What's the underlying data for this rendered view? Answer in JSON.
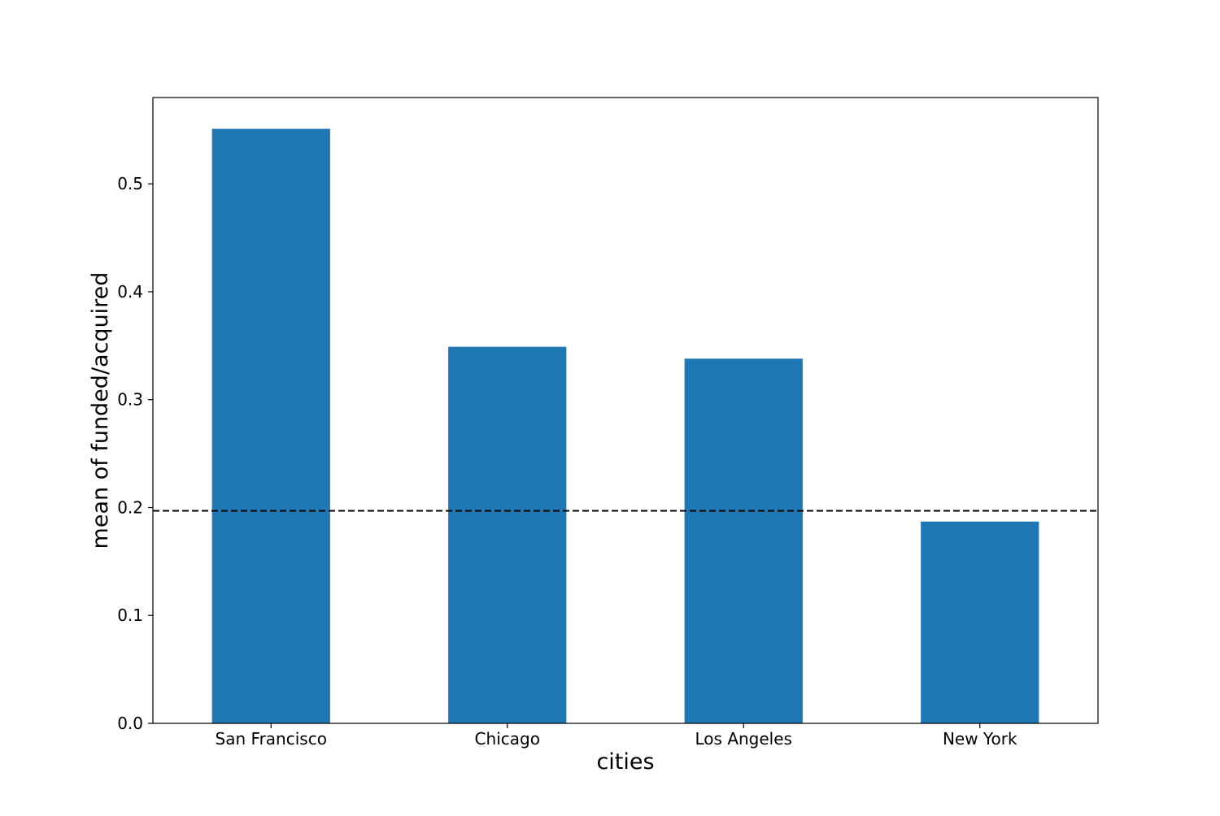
{
  "chart_data": {
    "type": "bar",
    "title": "",
    "xlabel": "cities",
    "ylabel": "mean of funded/acquired",
    "categories": [
      "San Francisco",
      "Chicago",
      "Los Angeles",
      "New York"
    ],
    "values": [
      0.551,
      0.349,
      0.338,
      0.187
    ],
    "ylim": [
      0,
      0.58
    ],
    "yticks": [
      {
        "value": 0.0,
        "label": "0.0"
      },
      {
        "value": 0.1,
        "label": "0.1"
      },
      {
        "value": 0.2,
        "label": "0.2"
      },
      {
        "value": 0.3,
        "label": "0.3"
      },
      {
        "value": 0.4,
        "label": "0.4"
      },
      {
        "value": 0.5,
        "label": "0.5"
      }
    ],
    "reference_line": {
      "value": 0.197,
      "style": "dashed",
      "color": "#000000"
    },
    "bar_color": "#1f77b4",
    "grid": false,
    "legend": "none"
  }
}
